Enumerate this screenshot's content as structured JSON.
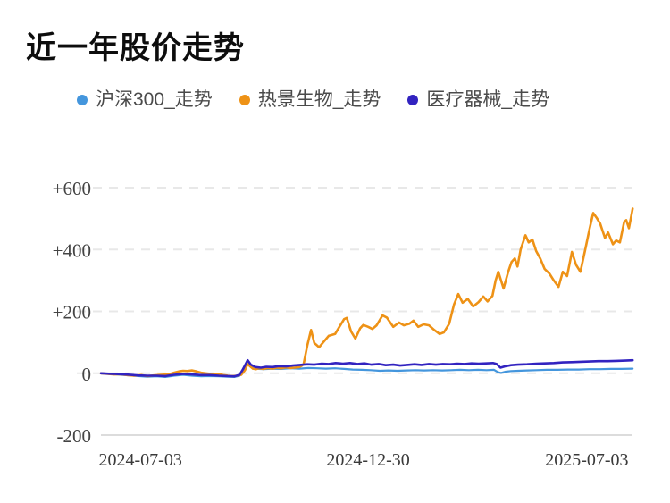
{
  "chart_data": {
    "type": "line",
    "title": "近一年股价走势",
    "subtitle": "",
    "xlabel": "",
    "ylabel": "",
    "ylim": [
      -200,
      600
    ],
    "grid": "horizontal dashed gridlines, solid bottom axis line",
    "legend_position": "top",
    "background": "#ffffff",
    "y_ticks": [
      {
        "label": "+600",
        "value": 600
      },
      {
        "label": "+400",
        "value": 400
      },
      {
        "label": "+200",
        "value": 200
      },
      {
        "label": "0",
        "value": 0
      },
      {
        "label": "-200",
        "value": -200
      }
    ],
    "x_ticks": [
      {
        "label": "2024-07-03",
        "t": 0.074
      },
      {
        "label": "2024-12-30",
        "t": 0.501
      },
      {
        "label": "2025-07-03",
        "t": 0.911
      }
    ],
    "series": [
      {
        "key": "hs300",
        "name": "沪深300_走势",
        "color": "#4496dd",
        "width": 2.2,
        "points": [
          [
            0,
            0
          ],
          [
            0.02,
            -3
          ],
          [
            0.045,
            -6
          ],
          [
            0.07,
            -9
          ],
          [
            0.087,
            -11
          ],
          [
            0.104,
            -10
          ],
          [
            0.121,
            -12
          ],
          [
            0.137,
            -8
          ],
          [
            0.154,
            -5
          ],
          [
            0.171,
            -8
          ],
          [
            0.188,
            -10
          ],
          [
            0.204,
            -9
          ],
          [
            0.221,
            -10
          ],
          [
            0.238,
            -11
          ],
          [
            0.25,
            -12
          ],
          [
            0.26,
            -8
          ],
          [
            0.268,
            8
          ],
          [
            0.275,
            30
          ],
          [
            0.281,
            20
          ],
          [
            0.288,
            15
          ],
          [
            0.305,
            13
          ],
          [
            0.322,
            15
          ],
          [
            0.338,
            14
          ],
          [
            0.355,
            16
          ],
          [
            0.372,
            15
          ],
          [
            0.389,
            17
          ],
          [
            0.405,
            16
          ],
          [
            0.422,
            15
          ],
          [
            0.439,
            16
          ],
          [
            0.456,
            14
          ],
          [
            0.472,
            12
          ],
          [
            0.489,
            11
          ],
          [
            0.506,
            10
          ],
          [
            0.523,
            8
          ],
          [
            0.539,
            9
          ],
          [
            0.556,
            8
          ],
          [
            0.573,
            9
          ],
          [
            0.59,
            10
          ],
          [
            0.606,
            9
          ],
          [
            0.623,
            10
          ],
          [
            0.64,
            9
          ],
          [
            0.657,
            10
          ],
          [
            0.673,
            11
          ],
          [
            0.69,
            10
          ],
          [
            0.707,
            11
          ],
          [
            0.723,
            10
          ],
          [
            0.737,
            11
          ],
          [
            0.744,
            4
          ],
          [
            0.75,
            1
          ],
          [
            0.759,
            5
          ],
          [
            0.769,
            7
          ],
          [
            0.782,
            8
          ],
          [
            0.799,
            9
          ],
          [
            0.816,
            10
          ],
          [
            0.836,
            11
          ],
          [
            0.856,
            11
          ],
          [
            0.876,
            12
          ],
          [
            0.896,
            12
          ],
          [
            0.916,
            13
          ],
          [
            0.936,
            13
          ],
          [
            0.956,
            14
          ],
          [
            0.976,
            14
          ],
          [
            0.997,
            15
          ]
        ]
      },
      {
        "key": "rejing",
        "name": "热景生物_走势",
        "color": "#ee9216",
        "width": 2.6,
        "points": [
          [
            0,
            0
          ],
          [
            0.012,
            -2
          ],
          [
            0.025,
            -4
          ],
          [
            0.037,
            -3
          ],
          [
            0.049,
            -6
          ],
          [
            0.062,
            -8
          ],
          [
            0.075,
            -6
          ],
          [
            0.087,
            -9
          ],
          [
            0.099,
            -7
          ],
          [
            0.112,
            -5
          ],
          [
            0.126,
            -4
          ],
          [
            0.137,
            2
          ],
          [
            0.146,
            6
          ],
          [
            0.154,
            8
          ],
          [
            0.162,
            7
          ],
          [
            0.171,
            9
          ],
          [
            0.179,
            6
          ],
          [
            0.188,
            2
          ],
          [
            0.196,
            0
          ],
          [
            0.204,
            -2
          ],
          [
            0.213,
            -4
          ],
          [
            0.221,
            -3
          ],
          [
            0.229,
            -6
          ],
          [
            0.238,
            -8
          ],
          [
            0.246,
            -9
          ],
          [
            0.255,
            -8
          ],
          [
            0.263,
            -5
          ],
          [
            0.27,
            10
          ],
          [
            0.275,
            30
          ],
          [
            0.28,
            22
          ],
          [
            0.285,
            15
          ],
          [
            0.291,
            13
          ],
          [
            0.296,
            16
          ],
          [
            0.305,
            14
          ],
          [
            0.313,
            17
          ],
          [
            0.322,
            15
          ],
          [
            0.33,
            18
          ],
          [
            0.338,
            16
          ],
          [
            0.347,
            19
          ],
          [
            0.355,
            17
          ],
          [
            0.363,
            18
          ],
          [
            0.372,
            20
          ],
          [
            0.377,
            25
          ],
          [
            0.38,
            30
          ],
          [
            0.387,
            90
          ],
          [
            0.394,
            140
          ],
          [
            0.4,
            98
          ],
          [
            0.409,
            84
          ],
          [
            0.417,
            100
          ],
          [
            0.427,
            121
          ],
          [
            0.439,
            127
          ],
          [
            0.447,
            150
          ],
          [
            0.456,
            175
          ],
          [
            0.461,
            179
          ],
          [
            0.469,
            135
          ],
          [
            0.477,
            112
          ],
          [
            0.486,
            145
          ],
          [
            0.492,
            156
          ],
          [
            0.501,
            150
          ],
          [
            0.509,
            143
          ],
          [
            0.517,
            155
          ],
          [
            0.528,
            187
          ],
          [
            0.536,
            180
          ],
          [
            0.548,
            150
          ],
          [
            0.559,
            164
          ],
          [
            0.568,
            155
          ],
          [
            0.578,
            160
          ],
          [
            0.586,
            170
          ],
          [
            0.595,
            150
          ],
          [
            0.605,
            158
          ],
          [
            0.615,
            155
          ],
          [
            0.625,
            140
          ],
          [
            0.635,
            127
          ],
          [
            0.643,
            132
          ],
          [
            0.653,
            160
          ],
          [
            0.662,
            222
          ],
          [
            0.67,
            256
          ],
          [
            0.678,
            228
          ],
          [
            0.688,
            240
          ],
          [
            0.698,
            216
          ],
          [
            0.708,
            230
          ],
          [
            0.717,
            248
          ],
          [
            0.725,
            232
          ],
          [
            0.734,
            250
          ],
          [
            0.74,
            300
          ],
          [
            0.745,
            328
          ],
          [
            0.755,
            274
          ],
          [
            0.764,
            330
          ],
          [
            0.77,
            360
          ],
          [
            0.776,
            371
          ],
          [
            0.781,
            345
          ],
          [
            0.787,
            400
          ],
          [
            0.796,
            446
          ],
          [
            0.802,
            423
          ],
          [
            0.809,
            432
          ],
          [
            0.816,
            395
          ],
          [
            0.824,
            370
          ],
          [
            0.832,
            337
          ],
          [
            0.841,
            322
          ],
          [
            0.849,
            300
          ],
          [
            0.858,
            279
          ],
          [
            0.866,
            328
          ],
          [
            0.874,
            314
          ],
          [
            0.883,
            392
          ],
          [
            0.891,
            350
          ],
          [
            0.899,
            328
          ],
          [
            0.908,
            400
          ],
          [
            0.916,
            466
          ],
          [
            0.923,
            518
          ],
          [
            0.93,
            501
          ],
          [
            0.936,
            484
          ],
          [
            0.945,
            437
          ],
          [
            0.951,
            455
          ],
          [
            0.96,
            417
          ],
          [
            0.966,
            429
          ],
          [
            0.973,
            423
          ],
          [
            0.981,
            489
          ],
          [
            0.985,
            495
          ],
          [
            0.99,
            469
          ],
          [
            0.997,
            532
          ]
        ]
      },
      {
        "key": "yiliao",
        "name": "医疗器械_走势",
        "color": "#3223c0",
        "width": 2.6,
        "points": [
          [
            0,
            0
          ],
          [
            0.02,
            -2
          ],
          [
            0.045,
            -4
          ],
          [
            0.07,
            -7
          ],
          [
            0.087,
            -8
          ],
          [
            0.104,
            -8
          ],
          [
            0.121,
            -9
          ],
          [
            0.137,
            -5
          ],
          [
            0.154,
            -2
          ],
          [
            0.171,
            -4
          ],
          [
            0.188,
            -6
          ],
          [
            0.204,
            -6
          ],
          [
            0.221,
            -8
          ],
          [
            0.238,
            -9
          ],
          [
            0.25,
            -10
          ],
          [
            0.26,
            -5
          ],
          [
            0.266,
            12
          ],
          [
            0.275,
            42
          ],
          [
            0.281,
            28
          ],
          [
            0.29,
            20
          ],
          [
            0.3,
            18
          ],
          [
            0.31,
            21
          ],
          [
            0.322,
            20
          ],
          [
            0.333,
            23
          ],
          [
            0.347,
            22
          ],
          [
            0.36,
            25
          ],
          [
            0.373,
            27
          ],
          [
            0.387,
            29
          ],
          [
            0.4,
            28
          ],
          [
            0.414,
            31
          ],
          [
            0.427,
            30
          ],
          [
            0.44,
            33
          ],
          [
            0.454,
            31
          ],
          [
            0.467,
            33
          ],
          [
            0.481,
            30
          ],
          [
            0.494,
            32
          ],
          [
            0.507,
            28
          ],
          [
            0.521,
            30
          ],
          [
            0.534,
            26
          ],
          [
            0.548,
            28
          ],
          [
            0.561,
            25
          ],
          [
            0.574,
            27
          ],
          [
            0.588,
            29
          ],
          [
            0.601,
            27
          ],
          [
            0.615,
            30
          ],
          [
            0.628,
            28
          ],
          [
            0.641,
            30
          ],
          [
            0.655,
            29
          ],
          [
            0.668,
            31
          ],
          [
            0.682,
            30
          ],
          [
            0.695,
            32
          ],
          [
            0.708,
            31
          ],
          [
            0.722,
            32
          ],
          [
            0.735,
            33
          ],
          [
            0.742,
            30
          ],
          [
            0.749,
            18
          ],
          [
            0.757,
            22
          ],
          [
            0.769,
            26
          ],
          [
            0.782,
            28
          ],
          [
            0.799,
            29
          ],
          [
            0.816,
            31
          ],
          [
            0.832,
            32
          ],
          [
            0.849,
            33
          ],
          [
            0.866,
            35
          ],
          [
            0.883,
            36
          ],
          [
            0.899,
            37
          ],
          [
            0.916,
            38
          ],
          [
            0.933,
            39
          ],
          [
            0.95,
            39
          ],
          [
            0.966,
            40
          ],
          [
            0.983,
            41
          ],
          [
            0.997,
            42
          ]
        ]
      }
    ],
    "style": {
      "gridline_dashed_color": "#e8e8e8",
      "axis_solid_color": "#dcdcdc",
      "title_color": "#0d0d0d",
      "tick_label_color": "#444444",
      "legend_label_color": "#4a4a4a"
    }
  }
}
